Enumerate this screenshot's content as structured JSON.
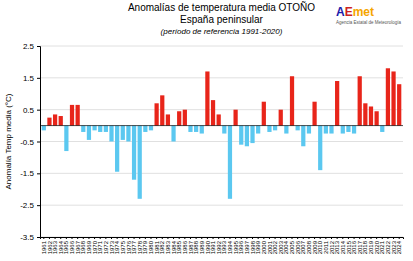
{
  "chart_data": {
    "type": "bar",
    "title": [
      "Anomalías de temperatura media OTOÑO",
      "España peninsular"
    ],
    "subtitle": "(período de referencia 1991-2020)",
    "ylabel": "Anomalía Temp media (°C)",
    "categories": [
      "1961",
      "1962",
      "1963",
      "1964",
      "1965",
      "1966",
      "1967",
      "1968",
      "1969",
      "1970",
      "1971",
      "1972",
      "1973",
      "1974",
      "1975",
      "1976",
      "1977",
      "1978",
      "1979",
      "1980",
      "1981",
      "1982",
      "1983",
      "1984",
      "1985",
      "1986",
      "1987",
      "1988",
      "1989",
      "1990",
      "1991",
      "1992",
      "1993",
      "1994",
      "1995",
      "1996",
      "1997",
      "1998",
      "1999",
      "2000",
      "2001",
      "2002",
      "2003",
      "2004",
      "2005",
      "2006",
      "2007",
      "2008",
      "2009",
      "2010",
      "2011",
      "2012",
      "2013",
      "2014",
      "2015",
      "2016",
      "2017",
      "2018",
      "2019",
      "2020",
      "2021",
      "2022",
      "2023",
      "2024"
    ],
    "values": [
      -0.15,
      0.25,
      0.35,
      0.3,
      -0.8,
      0.65,
      0.65,
      -0.2,
      -0.45,
      -0.15,
      -0.2,
      -0.2,
      -0.5,
      -1.45,
      -0.45,
      -0.5,
      -1.7,
      -2.3,
      -0.2,
      -0.15,
      0.7,
      0.95,
      0.35,
      -0.5,
      0.45,
      0.5,
      -0.2,
      -0.2,
      -0.25,
      1.7,
      0.8,
      0.35,
      -0.25,
      -2.3,
      0.5,
      -0.6,
      -0.65,
      -0.55,
      -0.25,
      0.75,
      -0.2,
      -0.15,
      0.5,
      -0.25,
      1.55,
      -0.15,
      -0.65,
      -0.25,
      0.75,
      -1.4,
      -0.25,
      -0.25,
      1.4,
      -0.25,
      -0.2,
      -0.25,
      1.55,
      0.7,
      0.6,
      0.45,
      -0.2,
      1.8,
      1.7,
      1.3
    ],
    "colors": [
      "#5bc8f0",
      "#e8251a",
      "#e8251a",
      "#e8251a",
      "#5bc8f0",
      "#e8251a",
      "#e8251a",
      "#5bc8f0",
      "#5bc8f0",
      "#5bc8f0",
      "#5bc8f0",
      "#5bc8f0",
      "#5bc8f0",
      "#5bc8f0",
      "#5bc8f0",
      "#5bc8f0",
      "#5bc8f0",
      "#5bc8f0",
      "#5bc8f0",
      "#5bc8f0",
      "#e8251a",
      "#e8251a",
      "#e8251a",
      "#5bc8f0",
      "#e8251a",
      "#e8251a",
      "#5bc8f0",
      "#5bc8f0",
      "#5bc8f0",
      "#e8251a",
      "#e8251a",
      "#e8251a",
      "#5bc8f0",
      "#5bc8f0",
      "#e8251a",
      "#5bc8f0",
      "#5bc8f0",
      "#5bc8f0",
      "#5bc8f0",
      "#e8251a",
      "#5bc8f0",
      "#5bc8f0",
      "#e8251a",
      "#5bc8f0",
      "#e8251a",
      "#5bc8f0",
      "#5bc8f0",
      "#5bc8f0",
      "#e8251a",
      "#5bc8f0",
      "#5bc8f0",
      "#5bc8f0",
      "#e8251a",
      "#5bc8f0",
      "#5bc8f0",
      "#5bc8f0",
      "#e8251a",
      "#e8251a",
      "#e8251a",
      "#e8251a",
      "#5bc8f0",
      "#e8251a",
      "#e8251a",
      "#e8251a"
    ],
    "ylim": [
      -3.5,
      2.5
    ],
    "yticks": [
      -3.5,
      -2.5,
      -1.5,
      -0.5,
      0.5,
      1.5,
      2.5
    ],
    "grid": true,
    "annotations": [
      {
        "text": "A",
        "color": "#1a1aaa"
      },
      {
        "text": "E",
        "color": "#cc2222"
      },
      {
        "text": "met",
        "color": "#f5a500"
      },
      {
        "text": "Agencia Estatal de Meteorología",
        "color": "#555555"
      }
    ]
  }
}
